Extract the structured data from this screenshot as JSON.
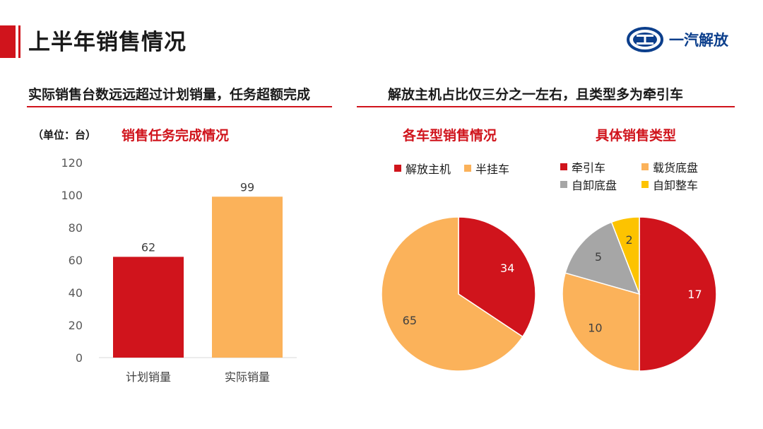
{
  "header": {
    "title": "上半年销售情况",
    "logo_text": "一汽解放"
  },
  "left_section": {
    "heading": "实际销售台数远远超过计划销量，任务超额完成",
    "unit_label": "（单位：台）"
  },
  "right_section": {
    "heading": "解放主机占比仅三分之一左右，且类型多为牵引车"
  },
  "colors": {
    "red": "#d0141c",
    "orange": "#fbb25a",
    "gray": "#a6a6a6",
    "yellow": "#fdc300",
    "brand_blue": "#0c3f8c"
  },
  "chart_data": [
    {
      "type": "bar",
      "title": "销售任务完成情况",
      "categories": [
        "计划销量",
        "实际销量"
      ],
      "values": [
        62,
        99
      ],
      "colors": [
        "#d0141c",
        "#fbb25a"
      ],
      "ylim": [
        0,
        120
      ],
      "yticks": [
        0,
        20,
        40,
        60,
        80,
        100,
        120
      ],
      "xlabel": "",
      "ylabel": ""
    },
    {
      "type": "pie",
      "title": "各车型销售情况",
      "labels": [
        "解放主机",
        "半挂车"
      ],
      "values": [
        34,
        65
      ],
      "colors": [
        "#d0141c",
        "#fbb25a"
      ],
      "legend": "top"
    },
    {
      "type": "pie",
      "title": "具体销售类型",
      "labels": [
        "牵引车",
        "载货底盘",
        "自卸底盘",
        "自卸整车"
      ],
      "values": [
        17,
        10,
        5,
        2
      ],
      "colors": [
        "#d0141c",
        "#fbb25a",
        "#a6a6a6",
        "#fdc300"
      ],
      "legend": "top"
    }
  ]
}
